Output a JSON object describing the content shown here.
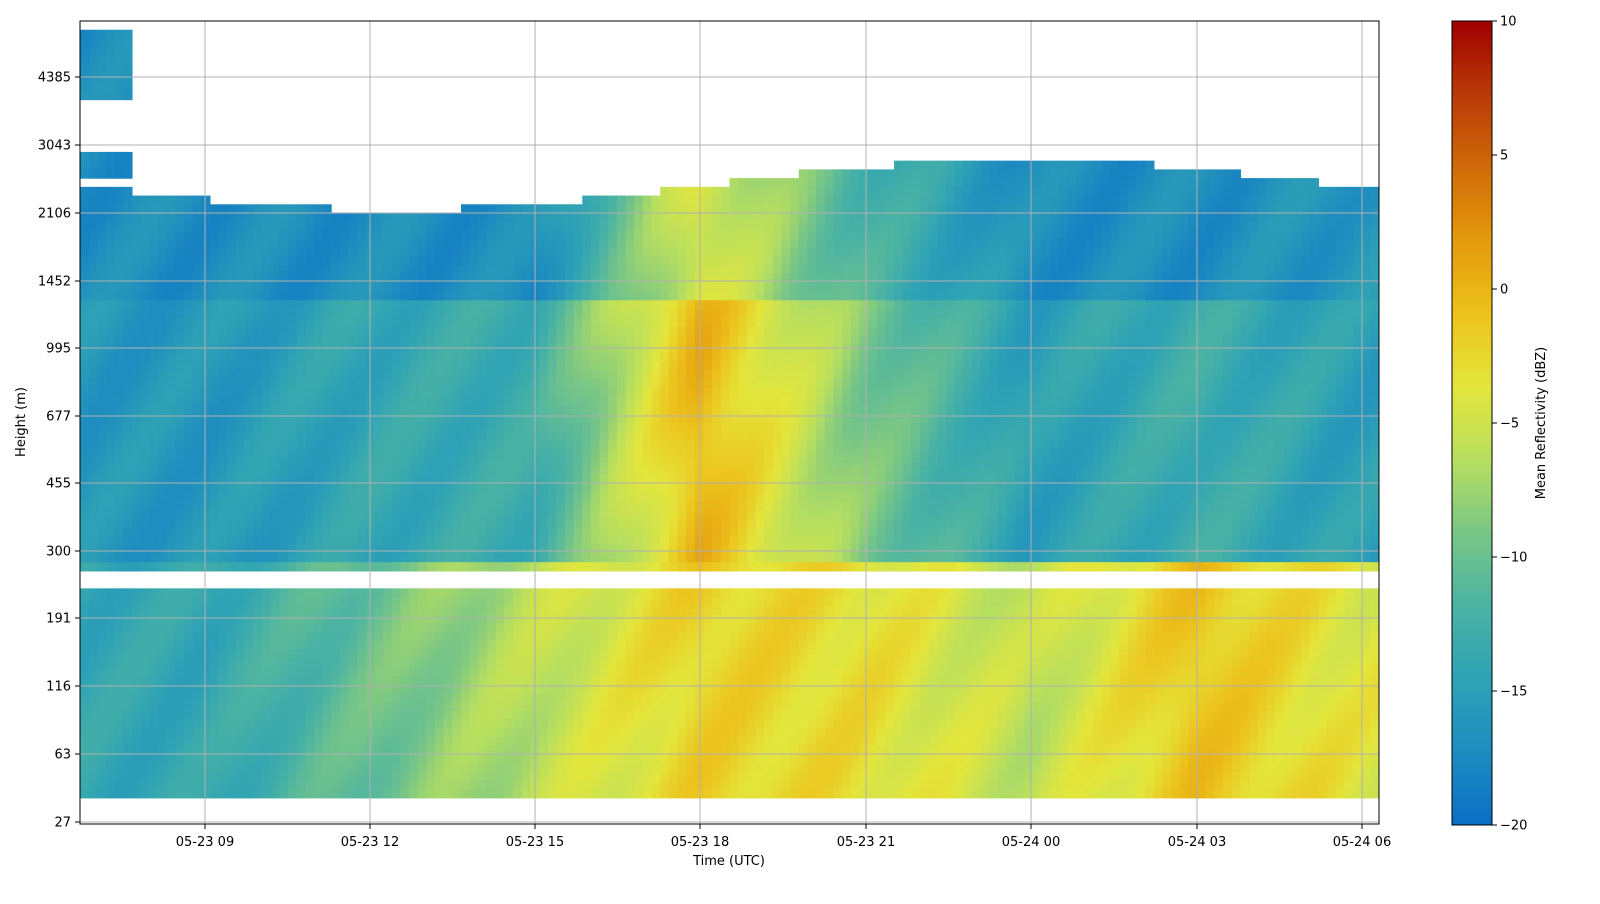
{
  "chart_data": {
    "type": "heatmap",
    "title": "",
    "xlabel": "Time (UTC)",
    "ylabel": "Height (m)",
    "colorbar_label": "Mean Reflectivity (dBZ)",
    "colormap_stops": [
      "#0a6fc6",
      "#1e8cbf",
      "#2fa3b5",
      "#4bb3a3",
      "#79c686",
      "#b8df5f",
      "#e3e63c",
      "#ecc21c",
      "#e39a0c",
      "#cf6a08",
      "#b83a07",
      "#a00000"
    ],
    "clim": [
      -20,
      10
    ],
    "colorbar_ticks": [
      "10",
      "5",
      "0",
      "−5",
      "−10",
      "−15",
      "−20"
    ],
    "x_ticks": [
      "05-23 09",
      "05-23 12",
      "05-23 15",
      "05-23 18",
      "05-23 21",
      "05-24 00",
      "05-24 03",
      "05-24 06"
    ],
    "y_ticks": [
      "27",
      "63",
      "116",
      "191",
      "300",
      "455",
      "677",
      "995",
      "1452",
      "2106",
      "3043",
      "4385"
    ],
    "grid": true,
    "summary_profiles": [
      {
        "time": "05-23 09",
        "low_dBZ": -14,
        "mid_dBZ": -16,
        "upper_dBZ": -17
      },
      {
        "time": "05-23 12",
        "low_dBZ": -10,
        "mid_dBZ": -14,
        "upper_dBZ": -17
      },
      {
        "time": "05-23 15",
        "low_dBZ": -6,
        "mid_dBZ": -13,
        "upper_dBZ": -17
      },
      {
        "time": "05-23 18",
        "low_dBZ": -2,
        "mid_dBZ": 0,
        "upper_dBZ": -4
      },
      {
        "time": "05-23 21",
        "low_dBZ": -3,
        "mid_dBZ": -9,
        "upper_dBZ": -12
      },
      {
        "time": "05-24 00",
        "low_dBZ": -6,
        "mid_dBZ": -15,
        "upper_dBZ": -17
      },
      {
        "time": "05-24 03",
        "low_dBZ": -1,
        "mid_dBZ": -13,
        "upper_dBZ": -17
      },
      {
        "time": "05-24 06",
        "low_dBZ": -4,
        "mid_dBZ": -15,
        "upper_dBZ": -16
      }
    ]
  }
}
